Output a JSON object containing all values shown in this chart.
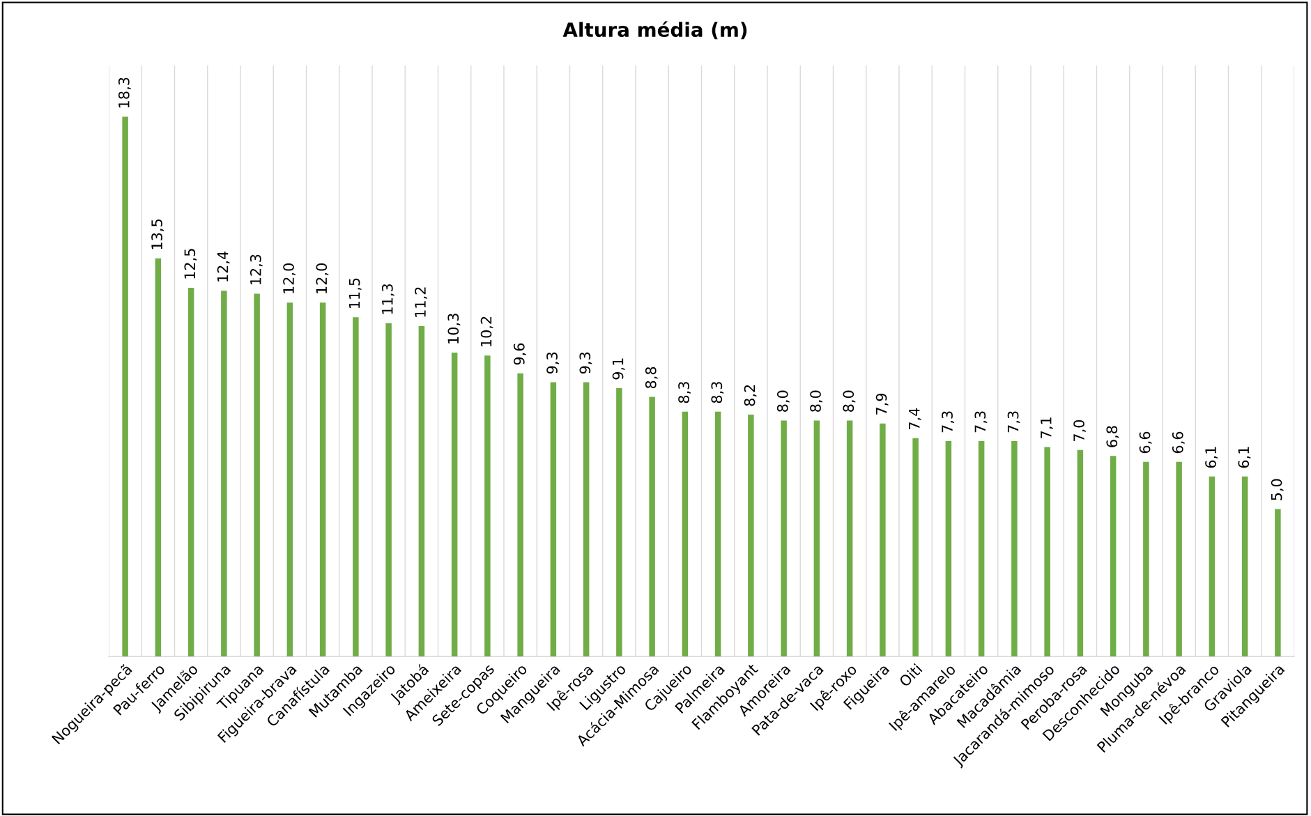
{
  "chart_data": {
    "type": "bar",
    "title": "Altura média (m)",
    "categories": [
      "Nogueira-pecã",
      "Pau-ferro",
      "Jamelão",
      "Sibipiruna",
      "Tipuana",
      "Figueira-brava",
      "Canafístula",
      "Mutamba",
      "Ingazeiro",
      "Jatobá",
      "Ameixeira",
      "Sete-copas",
      "Coqueiro",
      "Mangueira",
      "Ipê-rosa",
      "Ligustro",
      "Acácia-Mimosa",
      "Cajueiro",
      "Palmeira",
      "Flamboyant",
      "Amoreira",
      "Pata-de-vaca",
      "Ipê-roxo",
      "Figueira",
      "Oiti",
      "Ipê-amarelo",
      "Abacateiro",
      "Macadâmia",
      "Jacarandá-mimoso",
      "Peroba-rosa",
      "Desconhecido",
      "Monguba",
      "Pluma-de-névoa",
      "Ipê-branco",
      "Graviola",
      "Pitangueira"
    ],
    "values": [
      18.3,
      13.5,
      12.5,
      12.4,
      12.3,
      12.0,
      12.0,
      11.5,
      11.3,
      11.2,
      10.3,
      10.2,
      9.6,
      9.3,
      9.3,
      9.1,
      8.8,
      8.3,
      8.3,
      8.2,
      8.0,
      8.0,
      8.0,
      7.9,
      7.4,
      7.3,
      7.3,
      7.3,
      7.1,
      7.0,
      6.8,
      6.6,
      6.6,
      6.1,
      6.1,
      5.0
    ],
    "value_labels": [
      "18,3",
      "13,5",
      "12,5",
      "12,4",
      "12,3",
      "12,0",
      "12,0",
      "11,5",
      "11,3",
      "11,2",
      "10,3",
      "10,2",
      "9,6",
      "9,3",
      "9,3",
      "9,1",
      "8,8",
      "8,3",
      "8,3",
      "8,2",
      "8,0",
      "8,0",
      "8,0",
      "7,9",
      "7,4",
      "7,3",
      "7,3",
      "7,3",
      "7,1",
      "7,0",
      "6,8",
      "6,6",
      "6,6",
      "6,1",
      "6,1",
      "5,0"
    ],
    "color": "#70ad47",
    "grid": "x",
    "legend": false
  }
}
